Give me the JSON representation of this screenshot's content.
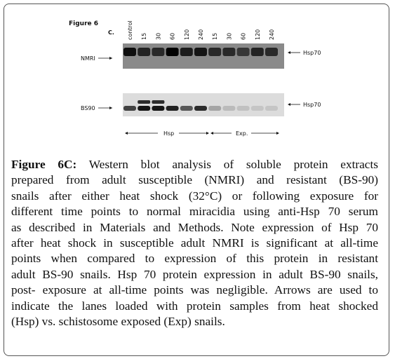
{
  "figure": {
    "label": "Figure 6",
    "panel": "C.",
    "lanes": [
      "control",
      "15",
      "30",
      "60",
      "120",
      "240",
      "15",
      "30",
      "60",
      "120",
      "240"
    ],
    "blots": [
      {
        "sample": "NMRI",
        "protein": "Hsp70"
      },
      {
        "sample": "BS90",
        "protein": "Hsp70"
      }
    ],
    "groups": [
      "Hsp",
      "Exp."
    ]
  },
  "caption": {
    "label": "Figure 6C:",
    "lines": [
      "Western blot analysis of soluble protein extracts",
      "prepared from adult susceptible (NMRI) and resistant (BS-90)",
      "snails after either heat shock (32°C) or following exposure for",
      "different time points to normal miracidia using anti-Hsp 70 serum",
      "as described in Materials and Methods. Note expression of Hsp 70",
      "after heat shock in susceptible adult NMRI is significant at all-time",
      "points when compared to expression of this protein in resistant",
      "adult BS-90 snails. Hsp 70 protein expression in adult BS-90 snails,",
      "post- exposure at all-time points was negligible. Arrows are used to",
      "indicate the lanes loaded with protein samples from heat shocked",
      "(Hsp) vs. schistosome exposed (Exp) snails."
    ]
  }
}
